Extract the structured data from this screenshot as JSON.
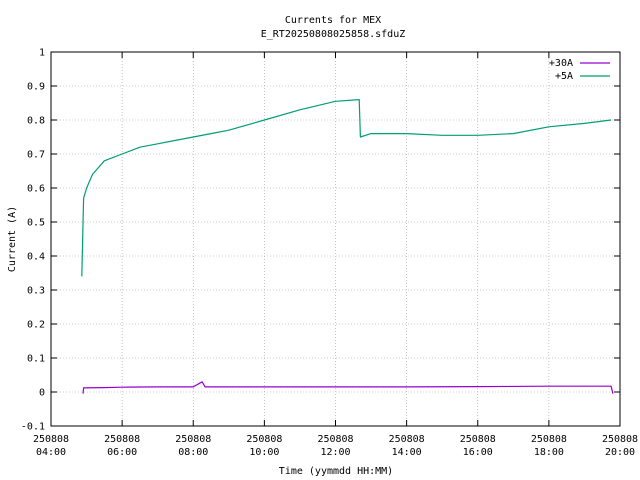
{
  "chart_data": {
    "type": "line",
    "title": "Currents for MEX",
    "subtitle": "E_RT20250808025858.sfduZ",
    "xlabel": "Time (yymmdd HH:MM)",
    "ylabel": "Current (A)",
    "xlim": [
      "250808 04:00",
      "250808 20:00"
    ],
    "ylim": [
      -0.1,
      1.0
    ],
    "y_ticks": [
      -0.1,
      0,
      0.1,
      0.2,
      0.3,
      0.4,
      0.5,
      0.6,
      0.7,
      0.8,
      0.9,
      1
    ],
    "x_ticks": [
      {
        "date": "250808",
        "time": "04:00"
      },
      {
        "date": "250808",
        "time": "06:00"
      },
      {
        "date": "250808",
        "time": "08:00"
      },
      {
        "date": "250808",
        "time": "10:00"
      },
      {
        "date": "250808",
        "time": "12:00"
      },
      {
        "date": "250808",
        "time": "14:00"
      },
      {
        "date": "250808",
        "time": "16:00"
      },
      {
        "date": "250808",
        "time": "18:00"
      },
      {
        "date": "250808",
        "time": "20:00"
      }
    ],
    "grid": true,
    "legend_position": "top-right",
    "series": [
      {
        "name": "+30A",
        "color": "#9400d3",
        "points": [
          [
            "04:54",
            -0.005
          ],
          [
            "04:55",
            0.012
          ],
          [
            "05:30",
            0.013
          ],
          [
            "06:00",
            0.014
          ],
          [
            "07:00",
            0.015
          ],
          [
            "08:00",
            0.015
          ],
          [
            "08:15",
            0.03
          ],
          [
            "08:20",
            0.015
          ],
          [
            "10:00",
            0.015
          ],
          [
            "12:00",
            0.015
          ],
          [
            "14:00",
            0.015
          ],
          [
            "16:00",
            0.016
          ],
          [
            "18:00",
            0.017
          ],
          [
            "19:45",
            0.017
          ],
          [
            "19:48",
            -0.005
          ]
        ]
      },
      {
        "name": "+5A",
        "color": "#009e73",
        "points": [
          [
            "04:52",
            0.34
          ],
          [
            "04:55",
            0.57
          ],
          [
            "05:00",
            0.6
          ],
          [
            "05:10",
            0.64
          ],
          [
            "05:20",
            0.66
          ],
          [
            "05:30",
            0.68
          ],
          [
            "06:00",
            0.7
          ],
          [
            "06:30",
            0.72
          ],
          [
            "07:00",
            0.73
          ],
          [
            "07:30",
            0.74
          ],
          [
            "08:00",
            0.75
          ],
          [
            "08:30",
            0.76
          ],
          [
            "09:00",
            0.77
          ],
          [
            "10:00",
            0.8
          ],
          [
            "11:00",
            0.83
          ],
          [
            "12:00",
            0.855
          ],
          [
            "12:40",
            0.86
          ],
          [
            "12:42",
            0.75
          ],
          [
            "13:00",
            0.76
          ],
          [
            "14:00",
            0.76
          ],
          [
            "15:00",
            0.755
          ],
          [
            "16:00",
            0.755
          ],
          [
            "17:00",
            0.76
          ],
          [
            "18:00",
            0.78
          ],
          [
            "19:00",
            0.79
          ],
          [
            "19:45",
            0.8
          ]
        ]
      }
    ]
  }
}
